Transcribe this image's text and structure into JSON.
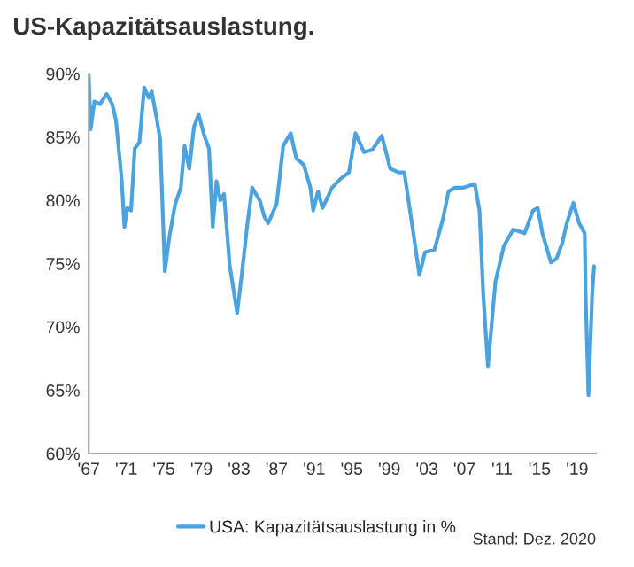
{
  "chart_data": {
    "type": "line",
    "title": "US-Kapazitätsauslastung.",
    "legend": "bottom",
    "grid": false,
    "annotations": [
      "Stand: Dez. 2020"
    ],
    "xlim": [
      1967,
      2021
    ],
    "xticks": [
      {
        "value": 1967,
        "label": "'67"
      },
      {
        "value": 1971,
        "label": "'71"
      },
      {
        "value": 1975,
        "label": "'75"
      },
      {
        "value": 1979,
        "label": "'79"
      },
      {
        "value": 1983,
        "label": "'83"
      },
      {
        "value": 1987,
        "label": "'87"
      },
      {
        "value": 1991,
        "label": "'91"
      },
      {
        "value": 1995,
        "label": "'95"
      },
      {
        "value": 1999,
        "label": "'99"
      },
      {
        "value": 2003,
        "label": "'03"
      },
      {
        "value": 2007,
        "label": "'07"
      },
      {
        "value": 2011,
        "label": "'11"
      },
      {
        "value": 2015,
        "label": "'15"
      },
      {
        "value": 2019,
        "label": "'19"
      }
    ],
    "ylim": [
      60,
      90
    ],
    "yticks": [
      {
        "value": 60,
        "label": "60%"
      },
      {
        "value": 65,
        "label": "65%"
      },
      {
        "value": 70,
        "label": "70%"
      },
      {
        "value": 75,
        "label": "75%"
      },
      {
        "value": 80,
        "label": "80%"
      },
      {
        "value": 85,
        "label": "85%"
      },
      {
        "value": 90,
        "label": "90%"
      }
    ],
    "series": [
      {
        "name": "USA: Kapazitätsauslastung in %",
        "color": "#4aa3df",
        "x": [
          1967.0,
          1967.2,
          1967.6,
          1968.2,
          1968.9,
          1969.5,
          1969.9,
          1970.5,
          1970.8,
          1971.1,
          1971.5,
          1971.9,
          1972.4,
          1972.9,
          1973.4,
          1973.7,
          1974.2,
          1974.6,
          1975.1,
          1975.6,
          1976.2,
          1976.8,
          1977.2,
          1977.7,
          1978.2,
          1978.7,
          1979.3,
          1979.8,
          1980.2,
          1980.6,
          1981.0,
          1981.4,
          1982.0,
          1982.8,
          1983.3,
          1983.9,
          1984.4,
          1985.2,
          1985.7,
          1986.1,
          1987.0,
          1987.7,
          1988.5,
          1989.1,
          1989.9,
          1990.6,
          1990.9,
          1991.4,
          1991.9,
          1992.9,
          1993.8,
          1994.7,
          1995.4,
          1996.3,
          1997.2,
          1998.2,
          1999.1,
          2000.0,
          2000.6,
          2001.5,
          2002.2,
          2002.8,
          2003.8,
          2004.7,
          2005.3,
          2006.0,
          2006.9,
          2008.1,
          2008.6,
          2009.0,
          2009.5,
          2010.3,
          2011.2,
          2012.2,
          2013.4,
          2014.3,
          2014.8,
          2015.3,
          2016.2,
          2016.8,
          2017.4,
          2017.9,
          2018.6,
          2019.2,
          2019.8,
          2019.9,
          2020.2,
          2020.6,
          2020.8
        ],
        "values": [
          89.9,
          85.6,
          87.8,
          87.6,
          88.4,
          87.6,
          86.3,
          81.7,
          77.9,
          79.4,
          79.2,
          84.1,
          84.6,
          88.9,
          88.1,
          88.6,
          86.6,
          84.8,
          74.4,
          77.2,
          79.7,
          81.0,
          84.3,
          82.5,
          85.8,
          86.8,
          85.1,
          84.1,
          77.9,
          81.5,
          80.0,
          80.5,
          74.9,
          71.1,
          74.2,
          78.2,
          81.0,
          80.0,
          78.7,
          78.2,
          79.7,
          84.3,
          85.3,
          83.3,
          82.8,
          81.0,
          79.2,
          80.7,
          79.4,
          81.0,
          81.7,
          82.2,
          85.3,
          83.8,
          84.0,
          85.1,
          82.5,
          82.2,
          82.2,
          77.7,
          74.1,
          75.9,
          76.1,
          78.5,
          80.7,
          81.0,
          81.0,
          81.3,
          79.2,
          72.6,
          66.9,
          73.6,
          76.4,
          77.7,
          77.4,
          79.2,
          79.4,
          77.4,
          75.1,
          75.4,
          76.6,
          78.2,
          79.8,
          78.2,
          77.4,
          72.6,
          64.6,
          72.6,
          74.8
        ]
      }
    ]
  }
}
